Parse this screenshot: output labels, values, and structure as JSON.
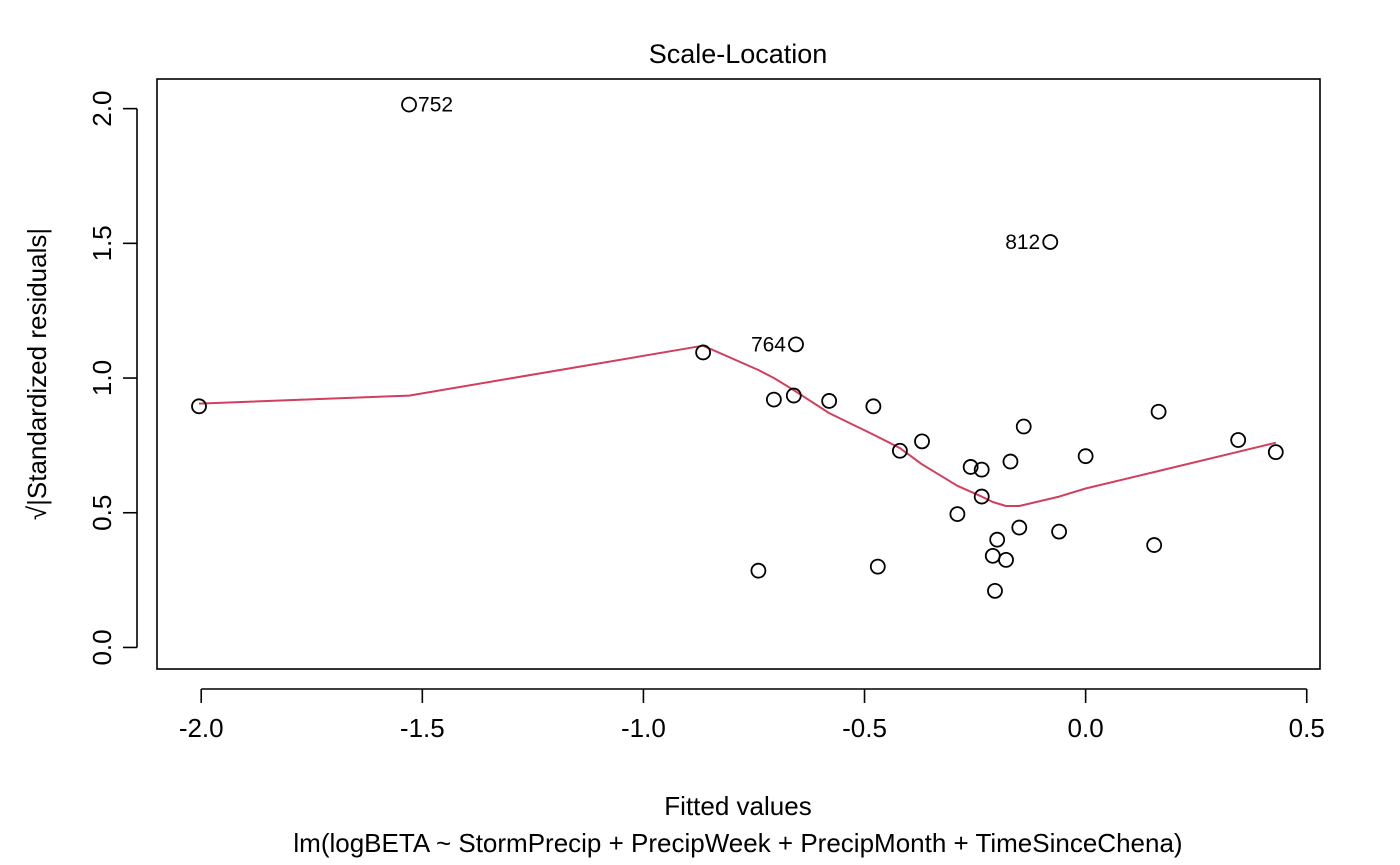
{
  "chart_data": {
    "type": "scatter",
    "title": "Scale-Location",
    "xlabel": "Fitted values",
    "subtitle": "lm(logBETA ~ StormPrecip + PrecipWeek + PrecipMonth + TimeSinceChena)",
    "ylabel": "√|Standardized residuals|",
    "xlim": [
      -2.1,
      0.53
    ],
    "ylim": [
      -0.08,
      2.11
    ],
    "x_ticks": [
      -2.0,
      -1.5,
      -1.0,
      -0.5,
      0.0,
      0.5
    ],
    "x_tick_labels": [
      "-2.0",
      "-1.5",
      "-1.0",
      "-0.5",
      "0.0",
      "0.5"
    ],
    "y_ticks": [
      0.0,
      0.5,
      1.0,
      1.5,
      2.0
    ],
    "y_tick_labels": [
      "0.0",
      "0.5",
      "1.0",
      "1.5",
      "2.0"
    ],
    "grid": false,
    "points": [
      {
        "x": -2.005,
        "y": 0.895
      },
      {
        "x": -1.53,
        "y": 2.015,
        "label": "752",
        "label_side": "right"
      },
      {
        "x": -0.865,
        "y": 1.095
      },
      {
        "x": -0.74,
        "y": 0.285
      },
      {
        "x": -0.705,
        "y": 0.92
      },
      {
        "x": -0.66,
        "y": 0.935
      },
      {
        "x": -0.655,
        "y": 1.125,
        "label": "764",
        "label_side": "left"
      },
      {
        "x": -0.58,
        "y": 0.915
      },
      {
        "x": -0.48,
        "y": 0.895
      },
      {
        "x": -0.47,
        "y": 0.3
      },
      {
        "x": -0.42,
        "y": 0.73
      },
      {
        "x": -0.37,
        "y": 0.765
      },
      {
        "x": -0.29,
        "y": 0.495
      },
      {
        "x": -0.26,
        "y": 0.67
      },
      {
        "x": -0.235,
        "y": 0.66
      },
      {
        "x": -0.235,
        "y": 0.56
      },
      {
        "x": -0.21,
        "y": 0.34
      },
      {
        "x": -0.205,
        "y": 0.21
      },
      {
        "x": -0.2,
        "y": 0.4
      },
      {
        "x": -0.18,
        "y": 0.325
      },
      {
        "x": -0.17,
        "y": 0.69
      },
      {
        "x": -0.15,
        "y": 0.445
      },
      {
        "x": -0.14,
        "y": 0.82
      },
      {
        "x": -0.08,
        "y": 1.505,
        "label": "812",
        "label_side": "left"
      },
      {
        "x": -0.06,
        "y": 0.43
      },
      {
        "x": 0.0,
        "y": 0.71
      },
      {
        "x": 0.155,
        "y": 0.38
      },
      {
        "x": 0.165,
        "y": 0.875
      },
      {
        "x": 0.345,
        "y": 0.77
      },
      {
        "x": 0.43,
        "y": 0.725
      }
    ],
    "smooth_line": {
      "color": "#D03F5B",
      "x": [
        -2.005,
        -1.53,
        -0.865,
        -0.74,
        -0.705,
        -0.66,
        -0.58,
        -0.48,
        -0.42,
        -0.37,
        -0.29,
        -0.235,
        -0.21,
        -0.18,
        -0.15,
        -0.06,
        0.0,
        0.165,
        0.43
      ],
      "y": [
        0.905,
        0.935,
        1.12,
        1.03,
        1.0,
        0.955,
        0.87,
        0.79,
        0.74,
        0.68,
        0.6,
        0.56,
        0.54,
        0.525,
        0.525,
        0.56,
        0.59,
        0.655,
        0.76
      ]
    },
    "point_color": "#000000"
  }
}
